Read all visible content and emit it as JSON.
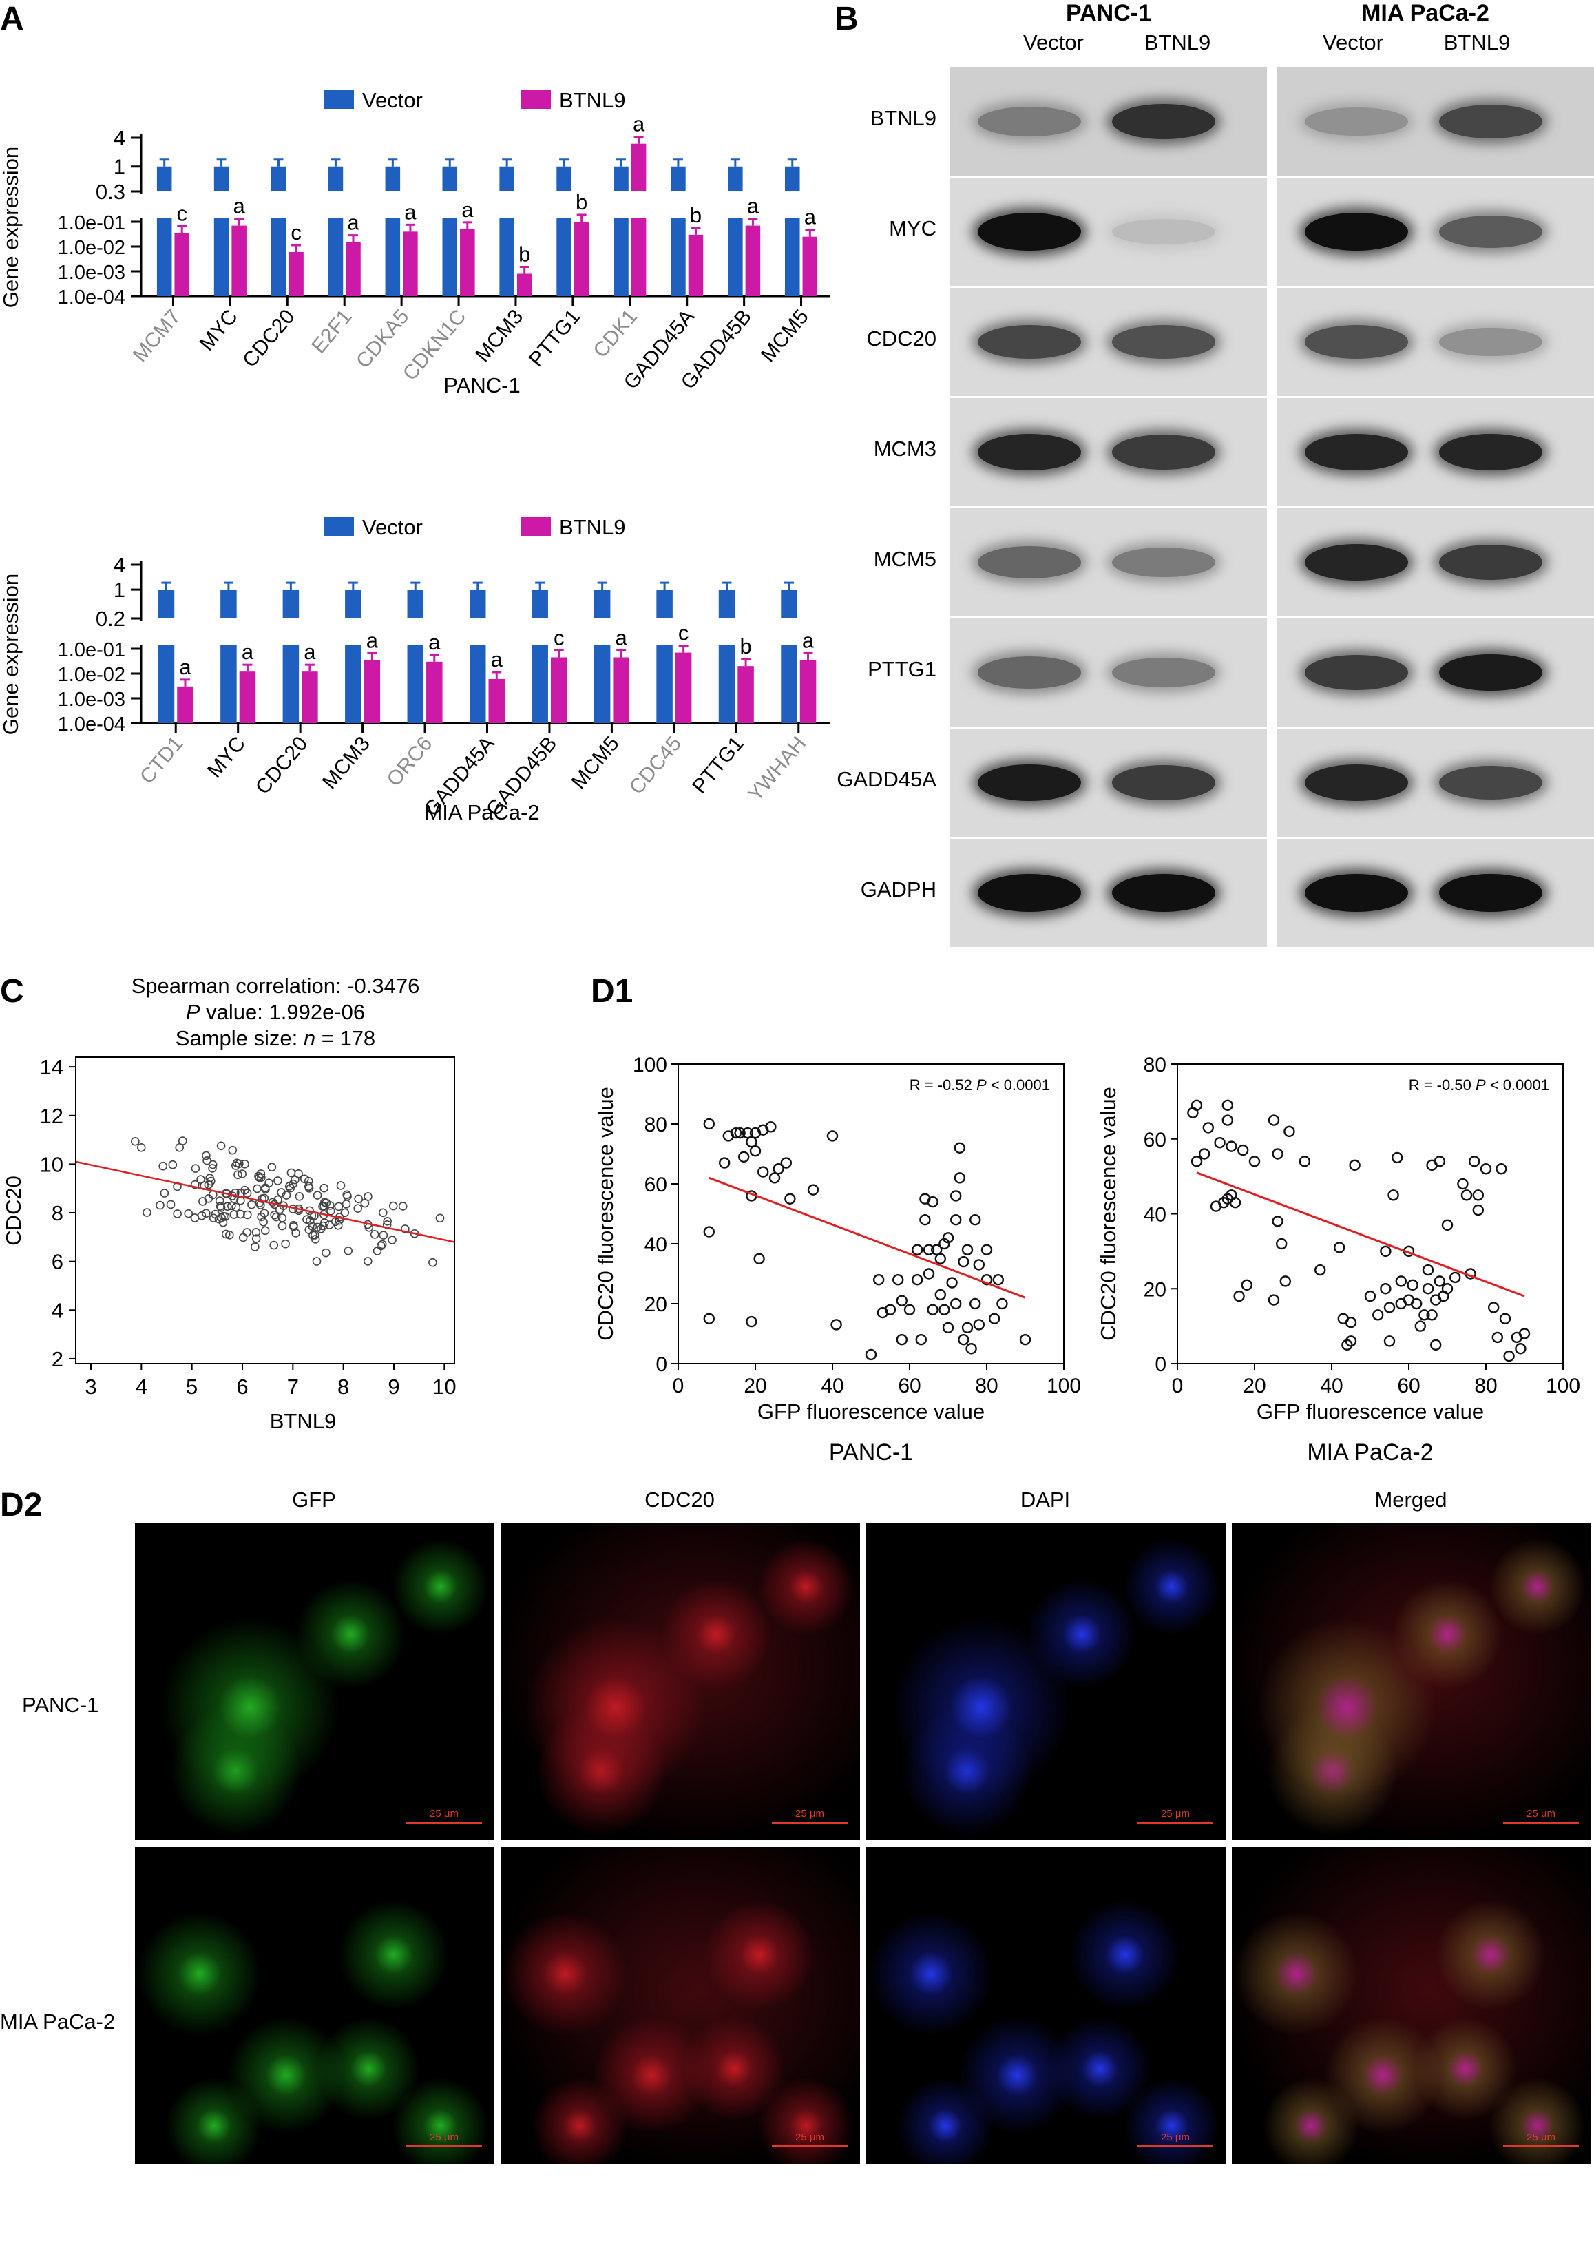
{
  "panels": {
    "A": "A",
    "B": "B",
    "C": "C",
    "D1": "D1",
    "D2": "D2"
  },
  "colors": {
    "vector": "#1f5fbf",
    "btnl9": "#cc1aa6",
    "fit": "#e02020",
    "scatter_edge": "#333333",
    "grey_gene": "#8c8c8c"
  },
  "chart_data": [
    {
      "type": "bar",
      "id": "A-top",
      "legend": [
        "Vector",
        "BTNL9"
      ],
      "ylabel": "Gene expression",
      "xtitle": "PANC-1",
      "upper_ticks": [
        "4",
        "1",
        "0.3"
      ],
      "lower_ticks": [
        "1.0e-01",
        "1.0e-02",
        "1.0e-03",
        "1.0e-04"
      ],
      "categories": [
        "MCM7",
        "MYC",
        "CDC20",
        "E2F1",
        "CDKA5",
        "CDKN1C",
        "MCM3",
        "PTTG1",
        "CDK1",
        "GADD45A",
        "GADD45B",
        "MCM5"
      ],
      "grey_categories": [
        "MCM7",
        "E2F1",
        "CDKA5",
        "CDKN1C",
        "CDK1"
      ],
      "series": [
        {
          "name": "Vector",
          "values": [
            1,
            1,
            1,
            1,
            1,
            1,
            1,
            1,
            1,
            1,
            1,
            1
          ]
        },
        {
          "name": "BTNL9",
          "values": [
            0.035,
            0.07,
            0.006,
            0.015,
            0.04,
            0.05,
            0.0008,
            0.1,
            3,
            0.03,
            0.07,
            0.025
          ]
        }
      ],
      "letters": [
        "c",
        "a",
        "c",
        "a",
        "a",
        "a",
        "b",
        "b",
        "a",
        "b",
        "a",
        "a"
      ]
    },
    {
      "type": "bar",
      "id": "A-bottom",
      "legend": [
        "Vector",
        "BTNL9"
      ],
      "ylabel": "Gene expression",
      "xtitle": "MIA PaCa-2",
      "upper_ticks": [
        "4",
        "1",
        "0.2"
      ],
      "lower_ticks": [
        "1.0e-01",
        "1.0e-02",
        "1.0e-03",
        "1.0e-04"
      ],
      "categories": [
        "CTD1",
        "MYC",
        "CDC20",
        "MCM3",
        "ORC6",
        "GADD45A",
        "GADD45B",
        "MCM5",
        "CDC45",
        "PTTG1",
        "YWHAH"
      ],
      "grey_categories": [
        "CTD1",
        "ORC6",
        "CDC45",
        "YWHAH"
      ],
      "series": [
        {
          "name": "Vector",
          "values": [
            1,
            1,
            1,
            1,
            1,
            1,
            1,
            1,
            1,
            1,
            1
          ]
        },
        {
          "name": "BTNL9",
          "values": [
            0.003,
            0.012,
            0.012,
            0.035,
            0.03,
            0.006,
            0.045,
            0.045,
            0.07,
            0.02,
            0.035
          ]
        }
      ],
      "letters": [
        "a",
        "a",
        "a",
        "a",
        "a",
        "a",
        "c",
        "a",
        "c",
        "b",
        "a"
      ]
    },
    {
      "type": "scatter",
      "id": "C",
      "title_lines": [
        "Spearman correlation: -0.3476",
        "value: 1.992e-06",
        "Sample size: ",
        " = 178"
      ],
      "title_italic": [
        "P",
        "n"
      ],
      "xlabel": "BTNL9",
      "ylabel": "CDC20",
      "xlim": [
        2.7,
        10.2
      ],
      "ylim": [
        1.8,
        14.4
      ],
      "xticks": [
        3,
        4,
        5,
        6,
        7,
        8,
        9,
        10
      ],
      "yticks": [
        2,
        4,
        6,
        8,
        10,
        12,
        14
      ],
      "fit": {
        "x": [
          2.7,
          10.2
        ],
        "y": [
          10.1,
          6.8
        ]
      }
    },
    {
      "type": "scatter",
      "id": "D1-left",
      "xlabel": "GFP fluorescence value",
      "ylabel": "CDC20 fluorescence value",
      "caption": "PANC-1",
      "annotation_r": "R = -0.52",
      "annotation_p": "< 0.0001",
      "xlim": [
        0,
        100
      ],
      "ylim": [
        0,
        100
      ],
      "xticks": [
        0,
        20,
        40,
        60,
        80,
        100
      ],
      "yticks": [
        0,
        20,
        40,
        60,
        80,
        100
      ],
      "fit": {
        "x": [
          8,
          90
        ],
        "y": [
          62,
          22
        ]
      },
      "points": [
        [
          8,
          80
        ],
        [
          8,
          44
        ],
        [
          8,
          15
        ],
        [
          12,
          67
        ],
        [
          13,
          76
        ],
        [
          15,
          77
        ],
        [
          16,
          77
        ],
        [
          17,
          69
        ],
        [
          18,
          77
        ],
        [
          19,
          56
        ],
        [
          19,
          74
        ],
        [
          19,
          14
        ],
        [
          20,
          71
        ],
        [
          20,
          77
        ],
        [
          21,
          35
        ],
        [
          22,
          64
        ],
        [
          22,
          78
        ],
        [
          24,
          79
        ],
        [
          25,
          62
        ],
        [
          26,
          65
        ],
        [
          28,
          67
        ],
        [
          29,
          55
        ],
        [
          35,
          58
        ],
        [
          40,
          76
        ],
        [
          41,
          13
        ],
        [
          50,
          3
        ],
        [
          52,
          28
        ],
        [
          53,
          17
        ],
        [
          55,
          18
        ],
        [
          57,
          28
        ],
        [
          58,
          21
        ],
        [
          58,
          8
        ],
        [
          60,
          18
        ],
        [
          62,
          38
        ],
        [
          62,
          28
        ],
        [
          63,
          8
        ],
        [
          64,
          48
        ],
        [
          64,
          55
        ],
        [
          65,
          38
        ],
        [
          65,
          30
        ],
        [
          66,
          18
        ],
        [
          67,
          38
        ],
        [
          68,
          23
        ],
        [
          68,
          35
        ],
        [
          69,
          18
        ],
        [
          70,
          42
        ],
        [
          70,
          12
        ],
        [
          71,
          27
        ],
        [
          72,
          56
        ],
        [
          72,
          48
        ],
        [
          73,
          62
        ],
        [
          73,
          72
        ],
        [
          74,
          34
        ],
        [
          74,
          8
        ],
        [
          75,
          38
        ],
        [
          75,
          12
        ],
        [
          76,
          5
        ],
        [
          77,
          20
        ],
        [
          77,
          48
        ],
        [
          78,
          33
        ],
        [
          78,
          13
        ],
        [
          80,
          38
        ],
        [
          80,
          28
        ],
        [
          82,
          15
        ],
        [
          83,
          28
        ],
        [
          84,
          20
        ],
        [
          90,
          8
        ],
        [
          72,
          20
        ],
        [
          66,
          54
        ],
        [
          69,
          40
        ]
      ]
    },
    {
      "type": "scatter",
      "id": "D1-right",
      "xlabel": "GFP fluorescence value",
      "ylabel": "CDC20 fluorescence value",
      "caption": "MIA PaCa-2",
      "annotation_r": "R = -0.50",
      "annotation_p": "< 0.0001",
      "xlim": [
        0,
        100
      ],
      "ylim": [
        0,
        80
      ],
      "xticks": [
        0,
        20,
        40,
        60,
        80,
        100
      ],
      "yticks": [
        0,
        20,
        40,
        60,
        80
      ],
      "fit": {
        "x": [
          5,
          90
        ],
        "y": [
          51,
          18
        ]
      },
      "points": [
        [
          4,
          67
        ],
        [
          5,
          69
        ],
        [
          5,
          54
        ],
        [
          7,
          56
        ],
        [
          8,
          63
        ],
        [
          10,
          42
        ],
        [
          11,
          59
        ],
        [
          12,
          43
        ],
        [
          13,
          69
        ],
        [
          13,
          65
        ],
        [
          13,
          44
        ],
        [
          14,
          45
        ],
        [
          14,
          58
        ],
        [
          15,
          43
        ],
        [
          16,
          18
        ],
        [
          17,
          57
        ],
        [
          18,
          21
        ],
        [
          20,
          54
        ],
        [
          25,
          17
        ],
        [
          25,
          65
        ],
        [
          26,
          38
        ],
        [
          26,
          56
        ],
        [
          27,
          32
        ],
        [
          28,
          22
        ],
        [
          29,
          62
        ],
        [
          33,
          54
        ],
        [
          37,
          25
        ],
        [
          42,
          31
        ],
        [
          43,
          12
        ],
        [
          44,
          5
        ],
        [
          45,
          6
        ],
        [
          45,
          11
        ],
        [
          46,
          53
        ],
        [
          50,
          18
        ],
        [
          52,
          13
        ],
        [
          54,
          20
        ],
        [
          54,
          30
        ],
        [
          55,
          15
        ],
        [
          55,
          6
        ],
        [
          56,
          45
        ],
        [
          57,
          55
        ],
        [
          58,
          22
        ],
        [
          58,
          16
        ],
        [
          60,
          30
        ],
        [
          60,
          17
        ],
        [
          61,
          21
        ],
        [
          62,
          16
        ],
        [
          63,
          10
        ],
        [
          64,
          13
        ],
        [
          65,
          25
        ],
        [
          65,
          20
        ],
        [
          66,
          53
        ],
        [
          66,
          13
        ],
        [
          67,
          17
        ],
        [
          67,
          5
        ],
        [
          68,
          22
        ],
        [
          68,
          54
        ],
        [
          69,
          18
        ],
        [
          70,
          20
        ],
        [
          70,
          37
        ],
        [
          72,
          23
        ],
        [
          74,
          48
        ],
        [
          75,
          45
        ],
        [
          76,
          24
        ],
        [
          77,
          54
        ],
        [
          78,
          45
        ],
        [
          78,
          41
        ],
        [
          80,
          52
        ],
        [
          82,
          15
        ],
        [
          83,
          7
        ],
        [
          84,
          52
        ],
        [
          85,
          12
        ],
        [
          86,
          2
        ],
        [
          88,
          7
        ],
        [
          89,
          4
        ],
        [
          90,
          8
        ]
      ]
    }
  ],
  "blot": {
    "header_cells": [
      "PANC-1",
      "MIA PaCa-2"
    ],
    "lanes": [
      "Vector",
      "BTNL9",
      "Vector",
      "BTNL9"
    ],
    "rows": [
      "BTNL9",
      "MYC",
      "CDC20",
      "MCM3",
      "MCM5",
      "PTTG1",
      "GADD45A",
      "GADPH"
    ],
    "intensity": [
      [
        0.45,
        0.8,
        0.35,
        0.7
      ],
      [
        0.95,
        0.15,
        0.95,
        0.6
      ],
      [
        0.7,
        0.65,
        0.65,
        0.35
      ],
      [
        0.85,
        0.75,
        0.85,
        0.85
      ],
      [
        0.55,
        0.45,
        0.85,
        0.75
      ],
      [
        0.55,
        0.45,
        0.75,
        0.9
      ],
      [
        0.9,
        0.75,
        0.85,
        0.7
      ],
      [
        0.95,
        0.95,
        0.95,
        0.95
      ]
    ]
  },
  "microscopy": {
    "columns": [
      "GFP",
      "CDC20",
      "DAPI",
      "Merged"
    ],
    "rows": [
      "PANC-1",
      "MIA PaCa-2"
    ],
    "scale_label": "25 μm"
  }
}
